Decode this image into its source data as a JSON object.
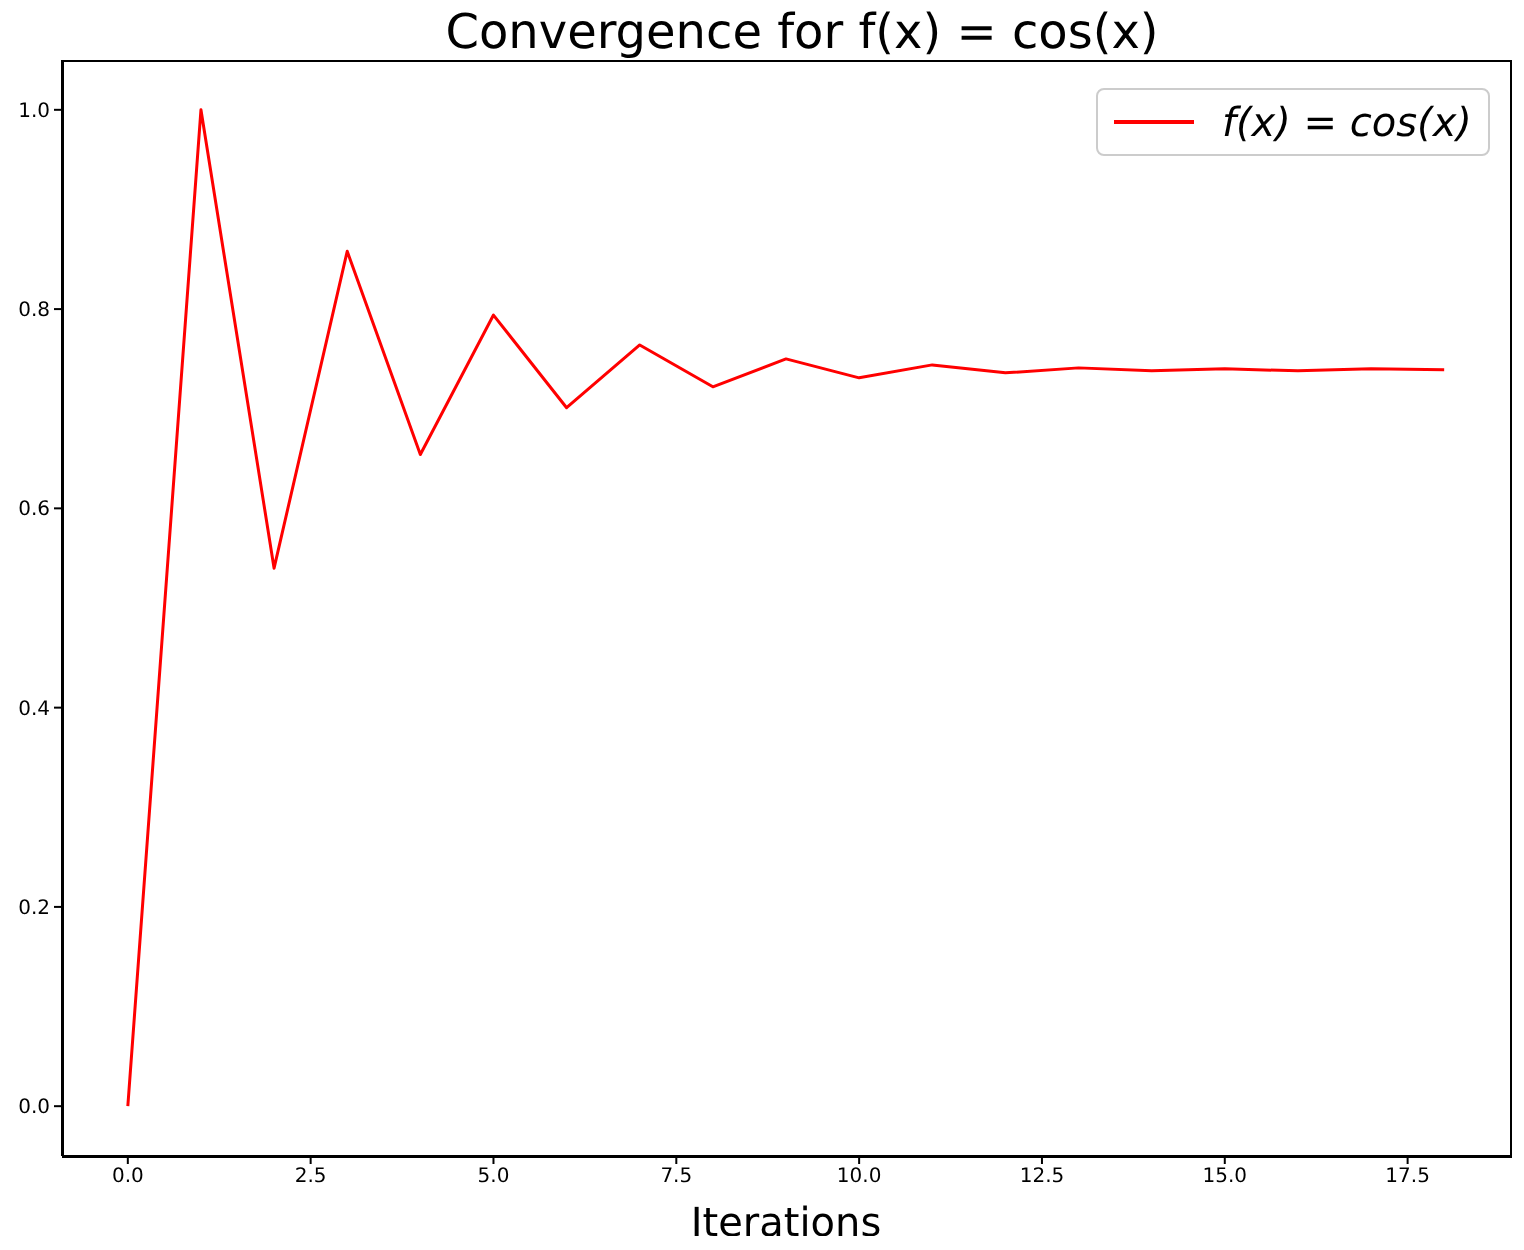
{
  "chart_data": {
    "type": "line",
    "title": "Convergence for f(x) = cos(x)",
    "xlabel": "Iterations",
    "x": [
      0,
      1,
      2,
      3,
      4,
      5,
      6,
      7,
      8,
      9,
      10,
      11,
      12,
      13,
      14,
      15,
      16,
      17,
      18
    ],
    "series": [
      {
        "name": "f(x) = cos(x)",
        "color": "#ff0000",
        "values": [
          0,
          1,
          0.54,
          0.858,
          0.654,
          0.794,
          0.701,
          0.764,
          0.722,
          0.75,
          0.731,
          0.744,
          0.736,
          0.741,
          0.738,
          0.74,
          0.738,
          0.74,
          0.739
        ]
      }
    ],
    "xlim": [
      -0.9,
      18.9
    ],
    "xticks": [
      {
        "value": 0,
        "label": "0.0"
      },
      {
        "value": 2.5,
        "label": "2.5"
      },
      {
        "value": 5,
        "label": "5.0"
      },
      {
        "value": 7.5,
        "label": "7.5"
      },
      {
        "value": 10,
        "label": "10.0"
      },
      {
        "value": 12.5,
        "label": "12.5"
      },
      {
        "value": 15,
        "label": "15.0"
      },
      {
        "value": 17.5,
        "label": "17.5"
      }
    ],
    "ylim": [
      -0.05,
      1.05
    ],
    "yticks": [
      {
        "value": 0,
        "label": "0.0"
      },
      {
        "value": 0.2,
        "label": "0.2"
      },
      {
        "value": 0.4,
        "label": "0.4"
      },
      {
        "value": 0.6,
        "label": "0.6"
      },
      {
        "value": 0.8,
        "label": "0.8"
      },
      {
        "value": 1,
        "label": "1.0"
      }
    ],
    "legend": "top right",
    "marker": "none",
    "line_style": "solid",
    "grid": false
  }
}
